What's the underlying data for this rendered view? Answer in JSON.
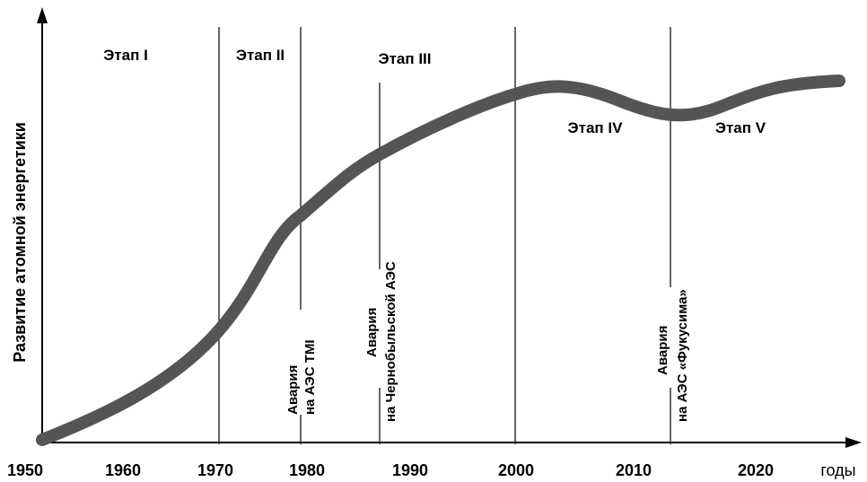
{
  "y_axis": {
    "label": "Развитие атомной энергетики"
  },
  "x_axis": {
    "label": "годы",
    "ticks": [
      "1950",
      "1960",
      "1970",
      "1980",
      "1990",
      "2000",
      "2010",
      "2020"
    ]
  },
  "stages": [
    "Этап I",
    "Этап II",
    "Этап III",
    "Этап IV",
    "Этап V"
  ],
  "events": [
    {
      "lines": [
        "Авария",
        "на АЭС TMI"
      ]
    },
    {
      "lines": [
        "Авария",
        "на Чернобыльской АЭС"
      ]
    },
    {
      "lines": [
        "Авария",
        "на АЭС «Фукусима»"
      ]
    }
  ]
}
